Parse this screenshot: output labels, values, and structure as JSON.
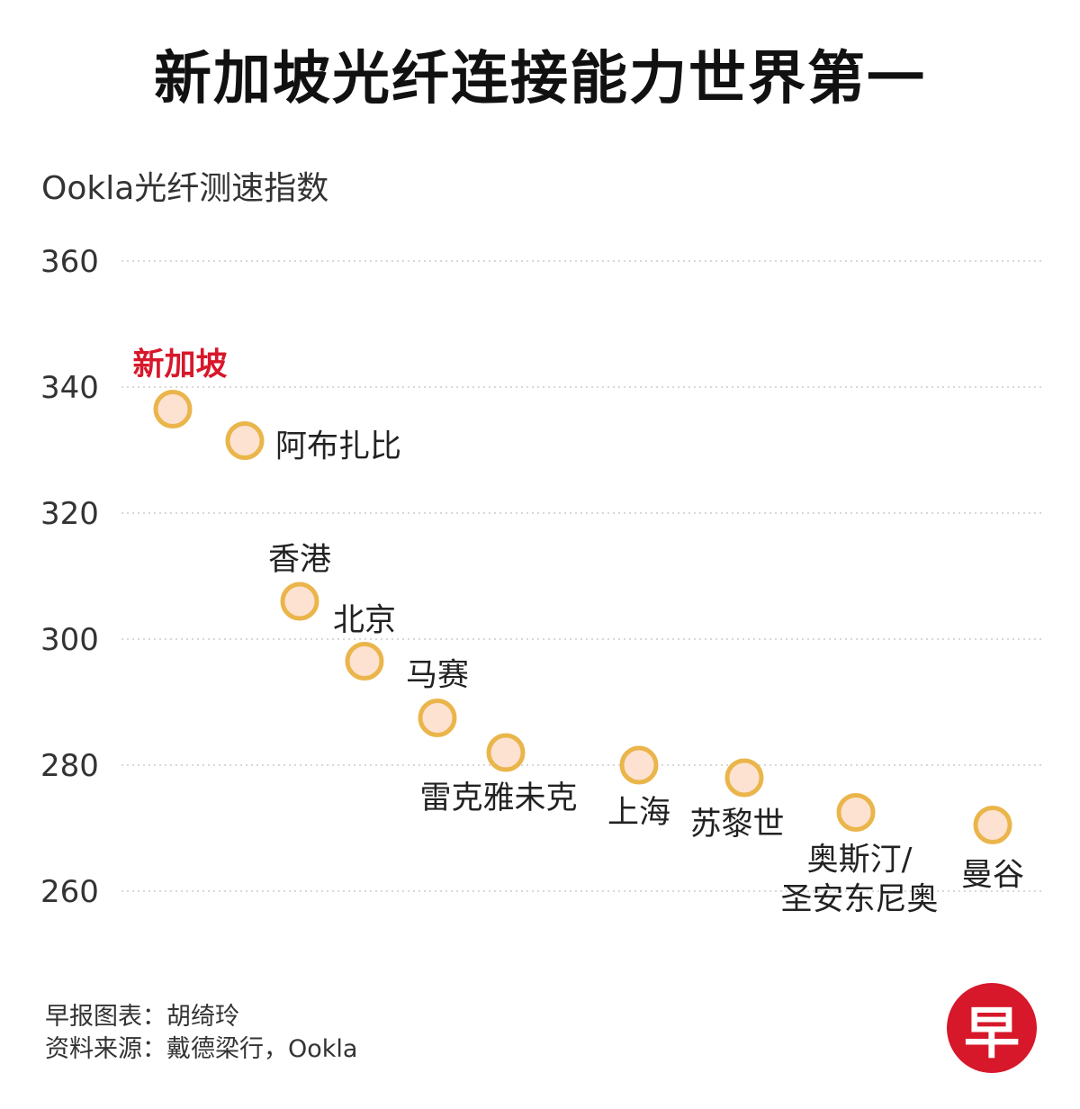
{
  "title": "新加坡光纤连接能力世界第一",
  "chart_data": {
    "type": "scatter",
    "ylabel": "Ookla光纤测速指数",
    "ylim": [
      250,
      362
    ],
    "yticks": [
      260,
      280,
      300,
      320,
      340,
      360
    ],
    "grid": true,
    "points": [
      {
        "label": "新加坡",
        "value": 336.5,
        "highlight": true
      },
      {
        "label": "阿布扎比",
        "value": 331.5
      },
      {
        "label": "香港",
        "value": 306
      },
      {
        "label": "北京",
        "value": 296.5
      },
      {
        "label": "马赛",
        "value": 287.5
      },
      {
        "label": "雷克雅未克",
        "value": 282
      },
      {
        "label": "上海",
        "value": 280
      },
      {
        "label": "苏黎世",
        "value": 278
      },
      {
        "label": "奥斯汀/圣安东尼奥",
        "value": 272.5
      },
      {
        "label": "曼谷",
        "value": 270.5
      }
    ],
    "colors": {
      "marker_fill": "#fde2d2",
      "marker_stroke": "#eab54a",
      "highlight_label": "#d7182a",
      "grid": "#cccccc"
    }
  },
  "footer": {
    "credit": "早报图表：胡绮玲",
    "source": "资料来源：戴德梁行，Ookla"
  },
  "logo": {
    "text": "早"
  }
}
